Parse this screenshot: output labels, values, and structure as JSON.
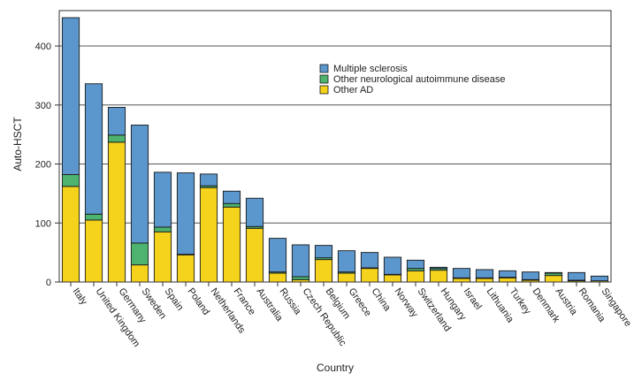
{
  "chart_data": {
    "type": "bar",
    "stacked": true,
    "xlabel": "Country",
    "ylabel": "Auto-HSCT",
    "ylim": [
      0,
      460
    ],
    "yticks": [
      0,
      100,
      200,
      300,
      400
    ],
    "grid": "horizontal",
    "legend_position": "top-center",
    "categories": [
      "Italy",
      "United Kingdom",
      "Germany",
      "Sweden",
      "Spain",
      "Poland",
      "Netherlands",
      "France",
      "Australia",
      "Russia",
      "Czech Republic",
      "Belgium",
      "Greece",
      "China",
      "Norway",
      "Switzerland",
      "Hungary",
      "Israel",
      "Lithuania",
      "Turkey",
      "Denmark",
      "Austria",
      "Romania",
      "Singapore"
    ],
    "series": [
      {
        "name": "Other AD",
        "color": "#f5d21c",
        "values": [
          162,
          105,
          237,
          29,
          85,
          46,
          160,
          127,
          91,
          15,
          4,
          38,
          15,
          23,
          12,
          19,
          20,
          6,
          6,
          7,
          3,
          11,
          2,
          2
        ]
      },
      {
        "name": "Other neurological autoimmune disease",
        "color": "#4db36e",
        "values": [
          20,
          10,
          12,
          37,
          8,
          1,
          3,
          6,
          3,
          2,
          5,
          3,
          2,
          1,
          1,
          4,
          3,
          1,
          1,
          1,
          1,
          4,
          1,
          0
        ]
      },
      {
        "name": "Multiple sclerosis",
        "color": "#5b96cc",
        "values": [
          266,
          221,
          47,
          200,
          93,
          138,
          20,
          21,
          48,
          57,
          54,
          21,
          36,
          26,
          29,
          14,
          2,
          16,
          14,
          11,
          13,
          1,
          13,
          8
        ]
      }
    ],
    "legend_order": [
      "Multiple sclerosis",
      "Other neurological autoimmune disease",
      "Other AD"
    ]
  }
}
